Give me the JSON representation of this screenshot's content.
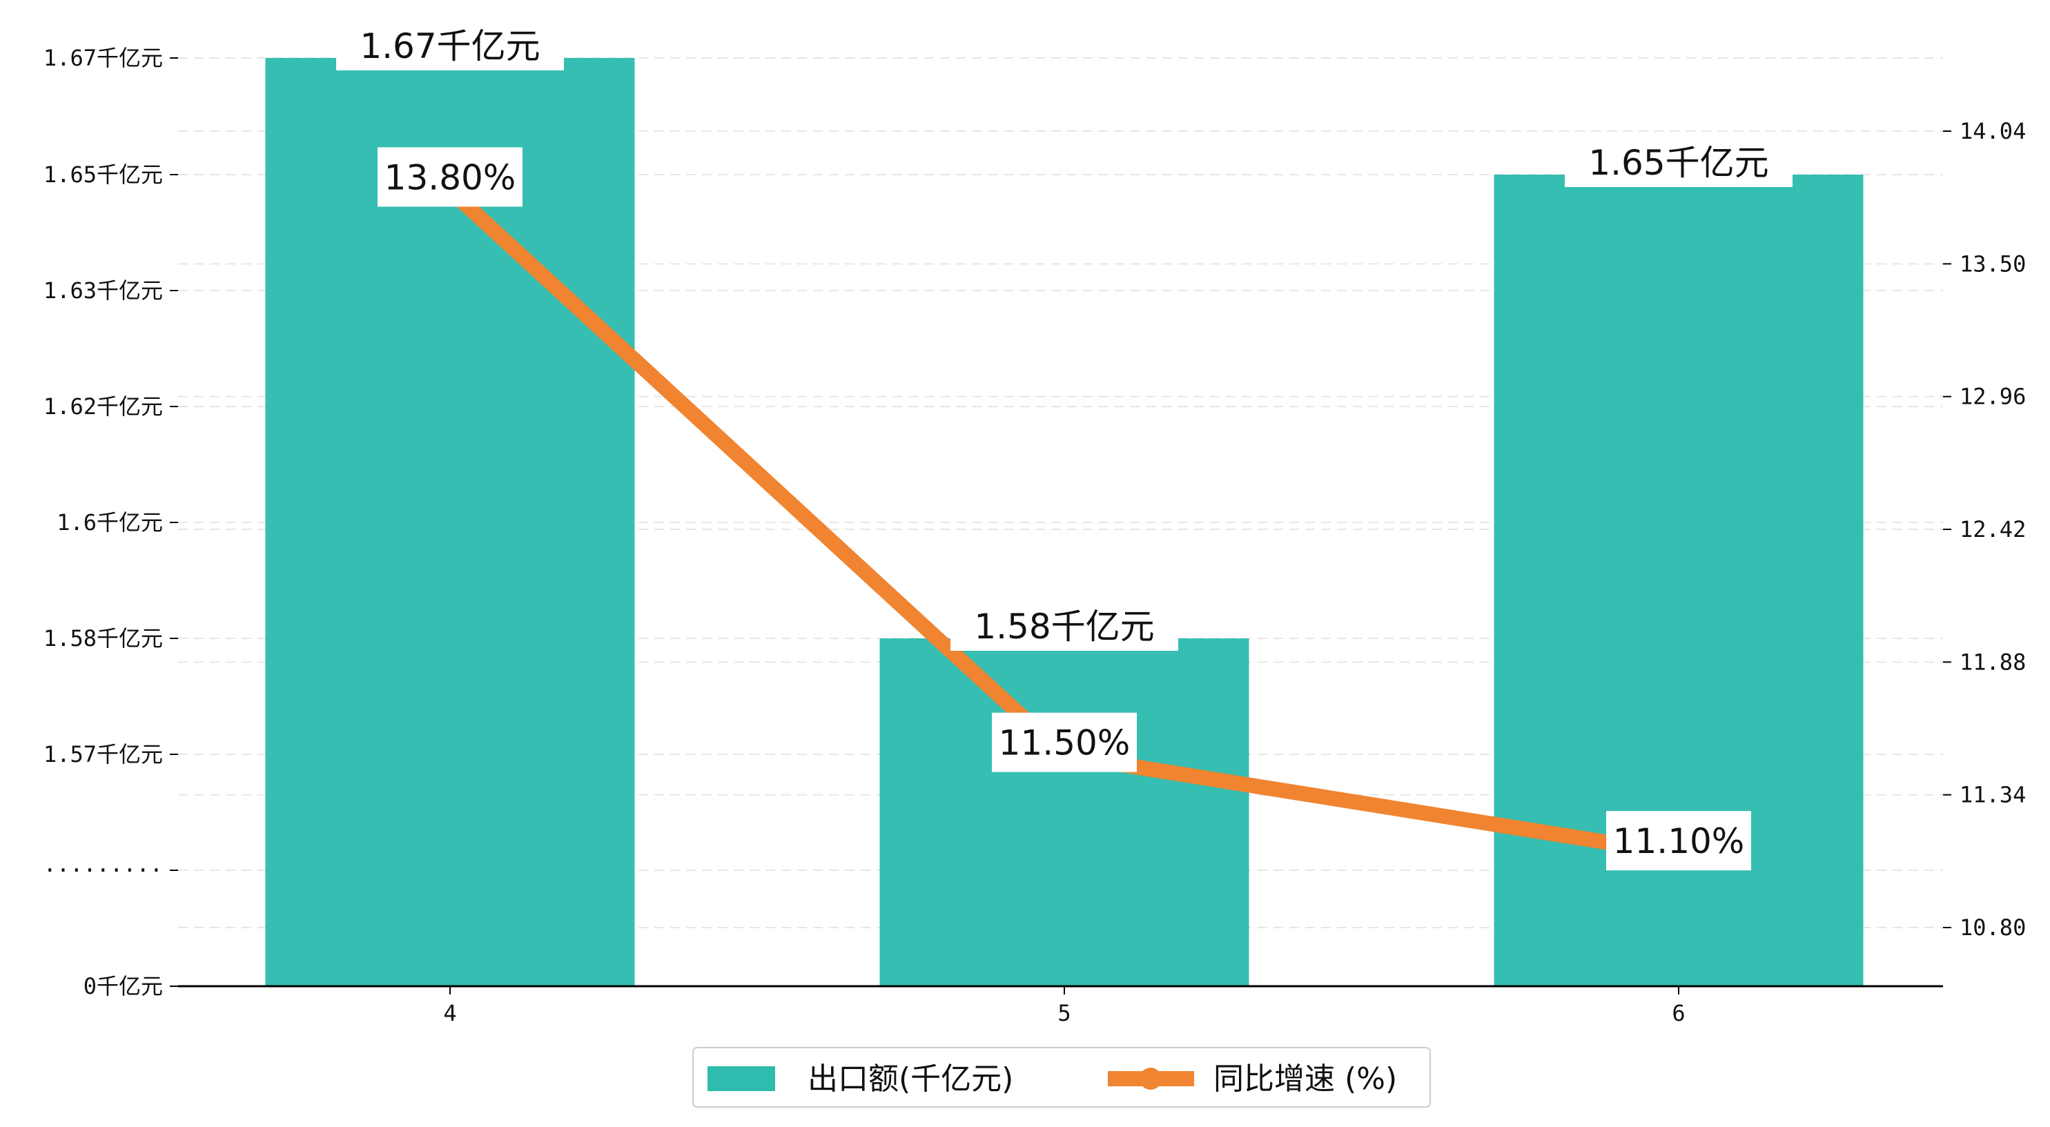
{
  "chart_data": {
    "type": "bar",
    "categories": [
      "4",
      "5",
      "6"
    ],
    "series": [
      {
        "name": "出口额(千亿元)",
        "kind": "bar",
        "axis": "left",
        "color": "#2ebcae",
        "values": [
          1.67,
          1.58,
          1.65
        ],
        "labels": [
          "1.67千亿元",
          "1.58千亿元",
          "1.65千亿元"
        ]
      },
      {
        "name": "同比增速 (%)",
        "kind": "line",
        "axis": "right",
        "color": "#f08430",
        "values": [
          13.8,
          11.5,
          11.1
        ],
        "labels": [
          "13.80%",
          "11.50%",
          "11.10%"
        ]
      }
    ],
    "left_axis": {
      "tick_labels": [
        "0千亿元",
        "·········",
        "1.57千亿元",
        "1.58千亿元",
        "1.6千亿元",
        "1.62千亿元",
        "1.63千亿元",
        "1.65千亿元",
        "1.67千亿元"
      ],
      "broken": true
    },
    "right_axis": {
      "ticks": [
        10.8,
        11.34,
        11.88,
        12.42,
        12.96,
        13.5,
        14.04
      ],
      "tick_labels": [
        "10.80",
        "11.34",
        "11.88",
        "12.42",
        "12.96",
        "13.50",
        "14.04"
      ],
      "ylim": [
        10.58,
        14.6
      ]
    },
    "grid": true,
    "legend_position": "bottom-center"
  }
}
